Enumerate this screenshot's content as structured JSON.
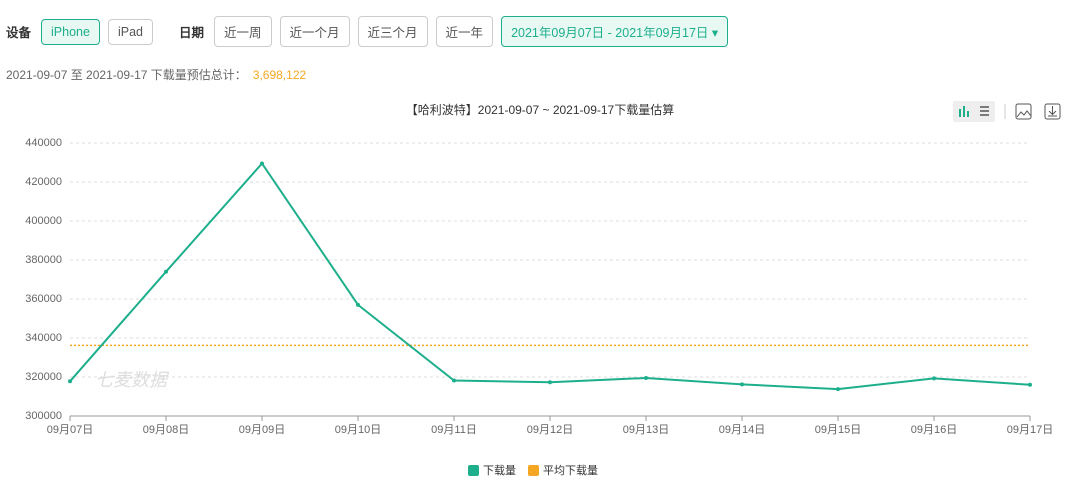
{
  "toolbar": {
    "device_label": "设备",
    "devices": [
      "iPhone",
      "iPad"
    ],
    "date_label": "日期",
    "ranges": [
      "近一周",
      "近一个月",
      "近三个月",
      "近一年"
    ],
    "date_range": "2021年09月07日 - 2021年09月17日"
  },
  "summary": {
    "text": "2021-09-07 至 2021-09-17 下载量预估总计：",
    "total": "3,698,122"
  },
  "chart_data": {
    "type": "line",
    "title": "【哈利波特】2021-09-07 ~ 2021-09-17下载量估算",
    "watermark": "七麦数据",
    "categories": [
      "09月07日",
      "09月08日",
      "09月09日",
      "09月10日",
      "09月11日",
      "09月12日",
      "09月13日",
      "09月14日",
      "09月15日",
      "09月16日",
      "09月17日"
    ],
    "series": [
      {
        "name": "下载量",
        "color": "#1daf8c",
        "values": [
          317800,
          374000,
          429500,
          357000,
          318200,
          317300,
          319500,
          316200,
          313800,
          319300,
          316000
        ]
      }
    ],
    "average": {
      "name": "平均下载量",
      "color": "#f5a623",
      "value": 336193
    },
    "ylim": [
      300000,
      440000
    ],
    "yticks": [
      300000,
      320000,
      340000,
      360000,
      380000,
      400000,
      420000,
      440000
    ],
    "grid": true
  }
}
